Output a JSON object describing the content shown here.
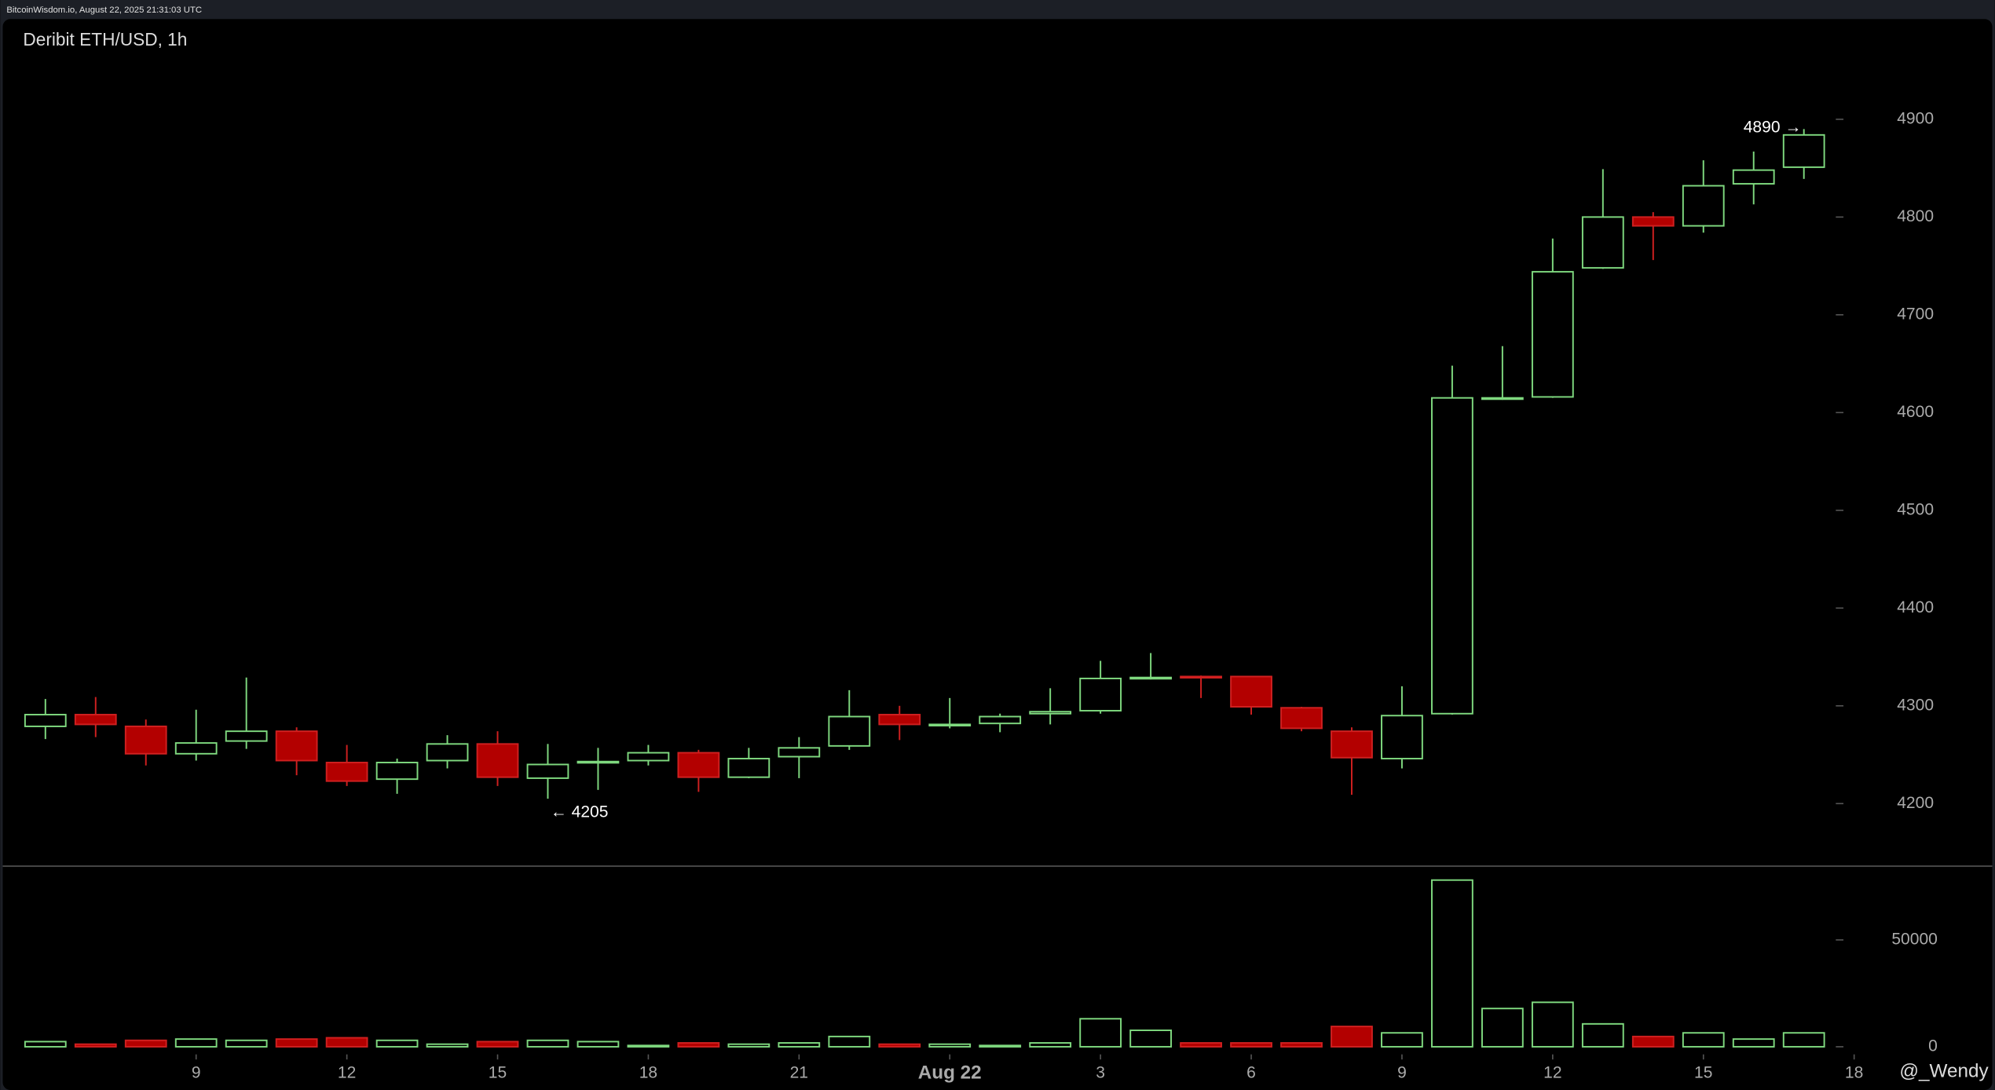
{
  "header": "BitcoinWisdom.io, August 22, 2025 21:31:03 UTC",
  "watermark": "@_Wendy",
  "chart_data": {
    "type": "candlestick",
    "title": "Deribit ETH/USD, 1h",
    "up_color": "#7fd97f",
    "down_color": "#b30000",
    "open": [
      4279,
      4291,
      4279,
      4251,
      4264,
      4274,
      4242,
      4225,
      4244,
      4261,
      4226,
      4242,
      4244,
      4252,
      4227,
      4248,
      4259,
      4291,
      4280,
      4282,
      4292,
      4295,
      4328,
      4330,
      4330,
      4298,
      4274,
      4246,
      4292,
      4614,
      4616,
      4748,
      4800,
      4791,
      4834,
      4851
    ],
    "high": [
      4307,
      4309,
      4286,
      4296,
      4329,
      4278,
      4260,
      4246,
      4270,
      4274,
      4261,
      4257,
      4260,
      4255,
      4257,
      4268,
      4316,
      4300,
      4308,
      4292,
      4318,
      4346,
      4354,
      4331,
      4330,
      4299,
      4278,
      4320,
      4648,
      4668,
      4778,
      4849,
      4805,
      4858,
      4867,
      4890
    ],
    "low": [
      4266,
      4268,
      4239,
      4244,
      4256,
      4229,
      4218,
      4210,
      4236,
      4218,
      4205,
      4214,
      4239,
      4212,
      4226,
      4226,
      4255,
      4265,
      4277,
      4273,
      4281,
      4292,
      4327,
      4308,
      4291,
      4274,
      4209,
      4236,
      4291,
      4613,
      4615,
      4747,
      4756,
      4784,
      4813,
      4839
    ],
    "close": [
      4291,
      4281,
      4251,
      4262,
      4274,
      4244,
      4223,
      4242,
      4261,
      4227,
      4240,
      4243,
      4252,
      4227,
      4246,
      4257,
      4289,
      4281,
      4281,
      4289,
      4294,
      4328,
      4329,
      4329,
      4299,
      4277,
      4247,
      4290,
      4615,
      4615,
      4744,
      4800,
      4791,
      4832,
      4848,
      4884
    ],
    "xlim": [
      -0.9,
      38.8
    ],
    "xticks": [
      {
        "value": 3,
        "label": "9"
      },
      {
        "value": 6,
        "label": "12"
      },
      {
        "value": 9,
        "label": "15"
      },
      {
        "value": 12,
        "label": "18"
      },
      {
        "value": 15,
        "label": "21"
      },
      {
        "value": 18,
        "label": "Aug 22"
      },
      {
        "value": 21,
        "label": "3"
      },
      {
        "value": 24,
        "label": "6"
      },
      {
        "value": 27,
        "label": "9"
      },
      {
        "value": 30,
        "label": "12"
      },
      {
        "value": 33,
        "label": "15"
      },
      {
        "value": 36,
        "label": "18"
      }
    ],
    "ylim": [
      4136,
      4996
    ],
    "yticks": [
      4200,
      4300,
      4400,
      4500,
      4600,
      4700,
      4800,
      4900
    ],
    "annotations": [
      {
        "text": "← 4205",
        "at": "low"
      },
      {
        "text": "4890 →",
        "at": "high"
      }
    ],
    "volume": {
      "values": [
        2400,
        1200,
        3000,
        3600,
        3000,
        3600,
        4200,
        3000,
        1200,
        2400,
        3000,
        2400,
        600,
        1800,
        1200,
        1800,
        4800,
        1200,
        1200,
        600,
        1800,
        13100,
        7700,
        1800,
        1800,
        1800,
        9500,
        6500,
        78000,
        17900,
        20800,
        10700,
        4800,
        6500,
        3600,
        6500
      ],
      "ylim": [
        0,
        82140
      ],
      "yticks": [
        0,
        50000
      ]
    }
  }
}
